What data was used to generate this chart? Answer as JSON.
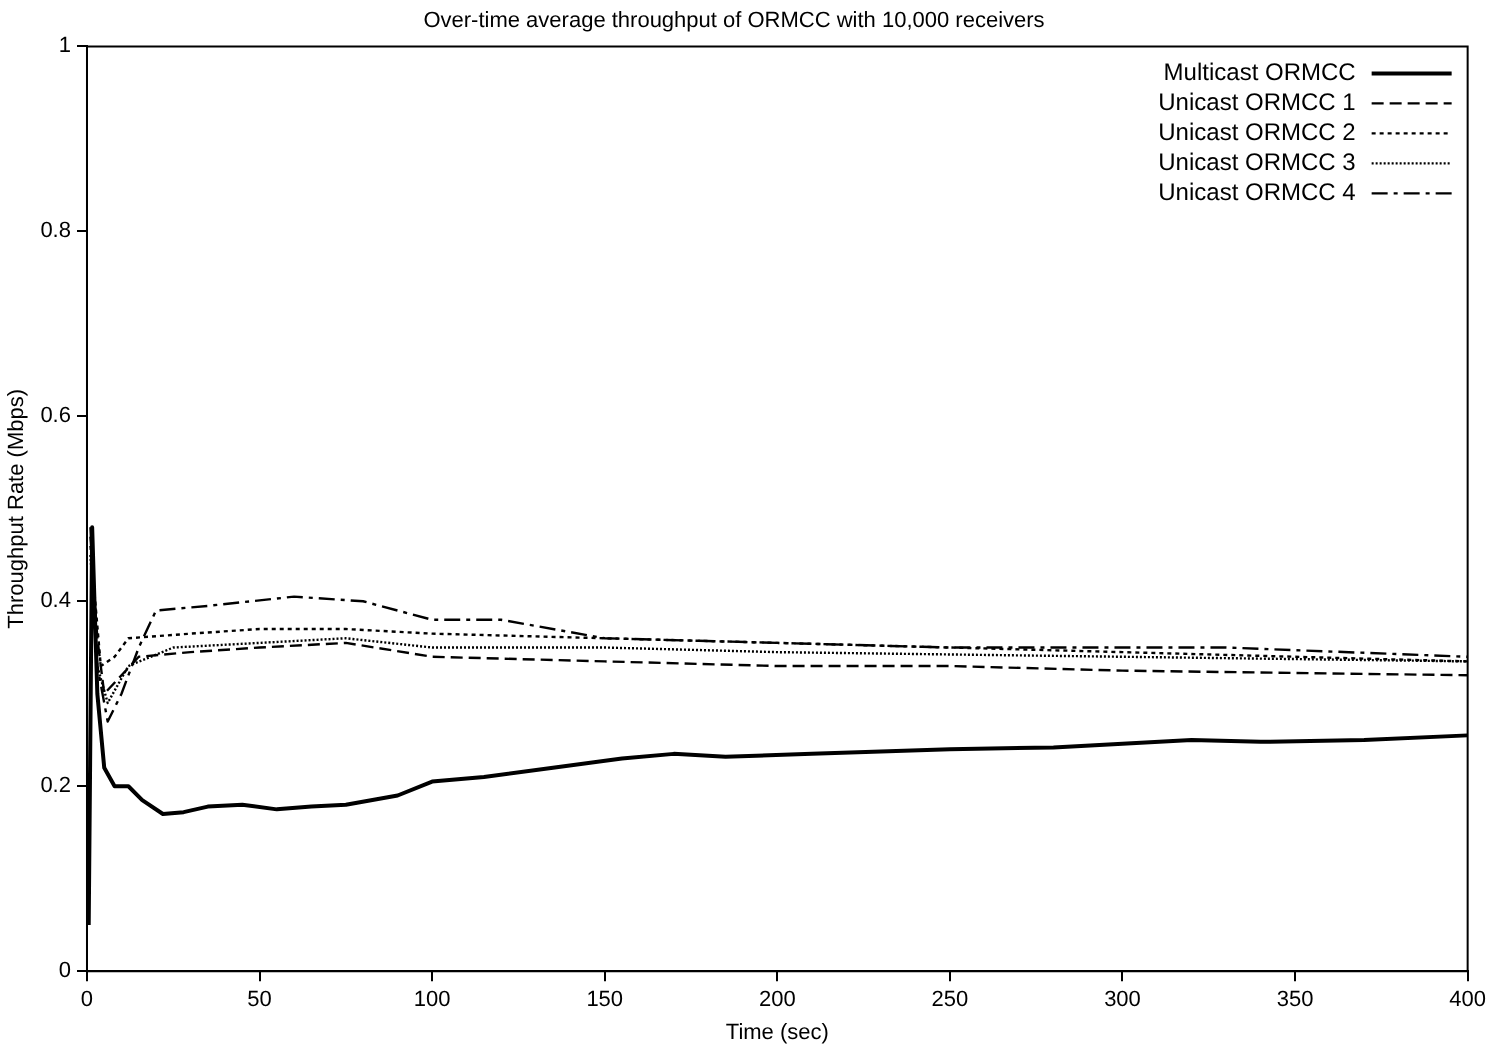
{
  "chart_data": {
    "type": "line",
    "title": "Over-time average throughput of ORMCC with 10,000 receivers",
    "xlabel": "Time (sec)",
    "ylabel": "Throughput Rate (Mbps)",
    "xlim": [
      0,
      400
    ],
    "xticks": [
      0,
      50,
      100,
      150,
      200,
      250,
      300,
      350,
      400
    ],
    "ylim": [
      0,
      1
    ],
    "yticks": [
      0,
      0.2,
      0.4,
      0.6,
      0.8,
      1
    ],
    "grid": false,
    "legend": "top right",
    "marker": "none",
    "series": [
      {
        "name": "Multicast ORMCC",
        "color": "#000000",
        "line_style": "solid",
        "x": [
          0.5,
          1.5,
          3,
          5,
          8,
          12,
          16,
          22,
          28,
          35,
          45,
          55,
          65,
          75,
          90,
          100,
          115,
          135,
          155,
          170,
          185,
          210,
          250,
          280,
          320,
          340,
          370,
          400
        ],
        "values": [
          0.05,
          0.48,
          0.3,
          0.22,
          0.2,
          0.2,
          0.185,
          0.17,
          0.172,
          0.178,
          0.18,
          0.175,
          0.178,
          0.18,
          0.19,
          0.205,
          0.21,
          0.22,
          0.23,
          0.235,
          0.232,
          0.235,
          0.24,
          0.242,
          0.25,
          0.248,
          0.25,
          0.255
        ]
      },
      {
        "name": "Unicast ORMCC 1",
        "color": "#000000",
        "line_style": "dashed",
        "x": [
          1,
          3,
          5,
          10,
          15,
          30,
          50,
          75,
          100,
          150,
          200,
          250,
          300,
          400
        ],
        "values": [
          0.47,
          0.36,
          0.3,
          0.32,
          0.34,
          0.345,
          0.35,
          0.355,
          0.34,
          0.335,
          0.33,
          0.33,
          0.325,
          0.32
        ]
      },
      {
        "name": "Unicast ORMCC 2",
        "color": "#000000",
        "line_style": "dotted",
        "x": [
          1,
          4,
          8,
          12,
          30,
          50,
          75,
          100,
          150,
          200,
          250,
          300,
          400
        ],
        "values": [
          0.46,
          0.33,
          0.34,
          0.36,
          0.365,
          0.37,
          0.37,
          0.365,
          0.36,
          0.355,
          0.35,
          0.345,
          0.335
        ]
      },
      {
        "name": "Unicast ORMCC 3",
        "color": "#000000",
        "line_style": "dotted",
        "x": [
          1,
          3,
          6,
          12,
          25,
          50,
          75,
          100,
          150,
          200,
          300,
          400
        ],
        "values": [
          0.45,
          0.33,
          0.29,
          0.33,
          0.35,
          0.355,
          0.36,
          0.35,
          0.35,
          0.345,
          0.34,
          0.335
        ]
      },
      {
        "name": "Unicast ORMCC 4",
        "color": "#000000",
        "line_style": "dashed",
        "x": [
          1,
          3,
          6,
          10,
          15,
          20,
          35,
          60,
          80,
          100,
          120,
          150,
          200,
          250,
          330,
          400
        ],
        "values": [
          0.48,
          0.33,
          0.27,
          0.3,
          0.35,
          0.39,
          0.395,
          0.405,
          0.4,
          0.38,
          0.38,
          0.36,
          0.355,
          0.35,
          0.35,
          0.34
        ]
      }
    ]
  }
}
